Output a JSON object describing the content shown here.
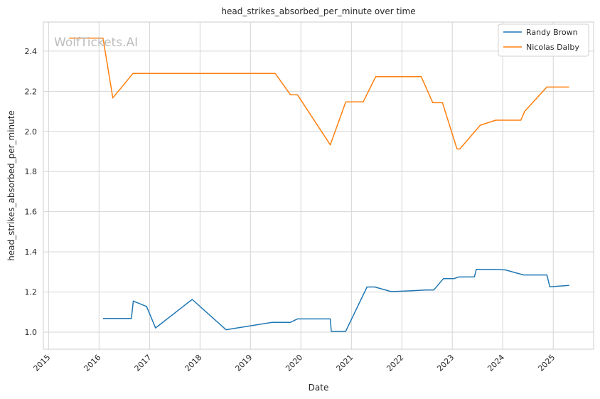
{
  "chart_data": {
    "type": "line",
    "title": "head_strikes_absorbed_per_minute over time",
    "xlabel": "Date",
    "ylabel": "head_strikes_absorbed_per_minute",
    "watermark": "WolfTickets.AI",
    "xlim": [
      "2014-11-24",
      "2025-10-20"
    ],
    "ylim": [
      0.915,
      2.545
    ],
    "x_ticks": [
      "2015",
      "2016",
      "2017",
      "2018",
      "2019",
      "2020",
      "2021",
      "2022",
      "2023",
      "2024",
      "2025"
    ],
    "y_ticks": [
      "1.0",
      "1.2",
      "1.4",
      "1.6",
      "1.8",
      "2.0",
      "2.2",
      "2.4"
    ],
    "grid": true,
    "legend_position": "top-right",
    "series": [
      {
        "name": "Randy Brown",
        "color": "#1f77b4",
        "points": [
          [
            "2016-01-30",
            1.068
          ],
          [
            "2016-08-22",
            1.068
          ],
          [
            "2016-09-05",
            1.155
          ],
          [
            "2016-12-10",
            1.128
          ],
          [
            "2017-02-13",
            1.021
          ],
          [
            "2017-11-05",
            1.163
          ],
          [
            "2018-07-08",
            1.012
          ],
          [
            "2019-06-08",
            1.049
          ],
          [
            "2019-10-18",
            1.049
          ],
          [
            "2019-12-07",
            1.066
          ],
          [
            "2020-08-01",
            1.066
          ],
          [
            "2020-08-08",
            1.004
          ],
          [
            "2020-11-20",
            1.004
          ],
          [
            "2021-04-24",
            1.225
          ],
          [
            "2021-06-19",
            1.225
          ],
          [
            "2021-10-16",
            1.202
          ],
          [
            "2022-03-05",
            1.206
          ],
          [
            "2022-06-25",
            1.21
          ],
          [
            "2022-08-20",
            1.21
          ],
          [
            "2022-10-29",
            1.267
          ],
          [
            "2023-01-14",
            1.267
          ],
          [
            "2023-02-18",
            1.275
          ],
          [
            "2023-06-10",
            1.275
          ],
          [
            "2023-06-24",
            1.313
          ],
          [
            "2023-11-04",
            1.313
          ],
          [
            "2024-01-20",
            1.31
          ],
          [
            "2024-06-01",
            1.285
          ],
          [
            "2024-11-16",
            1.285
          ],
          [
            "2024-12-07",
            1.226
          ],
          [
            "2025-04-26",
            1.233
          ]
        ]
      },
      {
        "name": "Nicolas Dalby",
        "color": "#ff7f0e",
        "points": [
          [
            "2015-05-30",
            2.465
          ],
          [
            "2016-01-30",
            2.465
          ],
          [
            "2016-04-10",
            2.167
          ],
          [
            "2016-09-03",
            2.289
          ],
          [
            "2019-06-29",
            2.289
          ],
          [
            "2019-10-18",
            2.183
          ],
          [
            "2019-12-07",
            2.183
          ],
          [
            "2020-08-01",
            1.933
          ],
          [
            "2020-11-21",
            2.147
          ],
          [
            "2021-03-27",
            2.147
          ],
          [
            "2021-06-26",
            2.273
          ],
          [
            "2022-05-21",
            2.273
          ],
          [
            "2022-08-13",
            2.143
          ],
          [
            "2022-10-22",
            2.143
          ],
          [
            "2023-02-04",
            1.913
          ],
          [
            "2023-02-25",
            1.913
          ],
          [
            "2023-07-22",
            2.031
          ],
          [
            "2023-11-11",
            2.056
          ],
          [
            "2024-05-11",
            2.056
          ],
          [
            "2024-06-08",
            2.1
          ],
          [
            "2024-11-16",
            2.221
          ],
          [
            "2025-04-26",
            2.221
          ]
        ]
      }
    ]
  }
}
